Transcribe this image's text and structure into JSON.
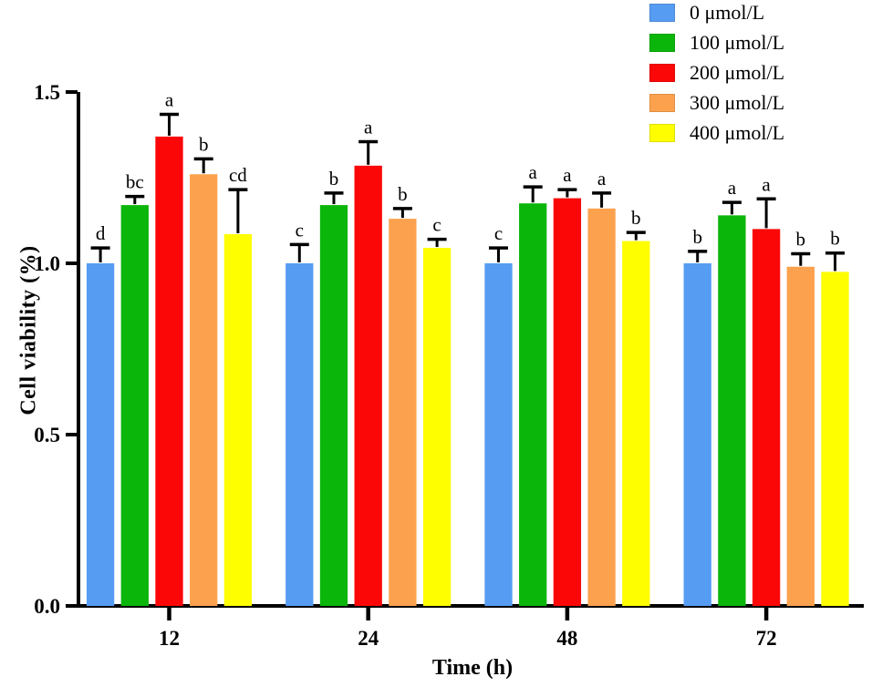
{
  "chart_data": {
    "type": "bar",
    "title": "",
    "xlabel": "Time (h)",
    "ylabel": "Cell viability (%)",
    "ylim": [
      0,
      1.5
    ],
    "yticks": [
      {
        "value": 0.0,
        "label": "0.0"
      },
      {
        "value": 0.5,
        "label": "0.5"
      },
      {
        "value": 1.0,
        "label": "1.0"
      },
      {
        "value": 1.5,
        "label": "1.5"
      }
    ],
    "categories": [
      "12",
      "24",
      "48",
      "72"
    ],
    "grid": false,
    "legend_position": "top-right",
    "error_bars": "upper-only with caps",
    "axis_color": "#000000",
    "series": [
      {
        "name": "0 μmol/L",
        "color": "#569CF2",
        "values": [
          1.0,
          1.0,
          1.0,
          1.0
        ],
        "errors": [
          0.045,
          0.055,
          0.045,
          0.035
        ],
        "letters": [
          "d",
          "c",
          "c",
          "b"
        ]
      },
      {
        "name": "100 μmol/L",
        "color": "#0BB60B",
        "values": [
          1.17,
          1.17,
          1.175,
          1.14
        ],
        "errors": [
          0.025,
          0.035,
          0.048,
          0.038
        ],
        "letters": [
          "bc",
          "b",
          "a",
          "a"
        ]
      },
      {
        "name": "200 μmol/L",
        "color": "#FB0707",
        "values": [
          1.37,
          1.285,
          1.19,
          1.1
        ],
        "errors": [
          0.065,
          0.07,
          0.025,
          0.088
        ],
        "letters": [
          "a",
          "a",
          "a",
          "a"
        ]
      },
      {
        "name": "300 μmol/L",
        "color": "#FCA24E",
        "values": [
          1.26,
          1.13,
          1.16,
          0.99
        ],
        "errors": [
          0.045,
          0.03,
          0.045,
          0.038
        ],
        "letters": [
          "b",
          "b",
          "a",
          "b"
        ]
      },
      {
        "name": "400 μmol/L",
        "color": "#FEFE00",
        "values": [
          1.085,
          1.045,
          1.065,
          0.975
        ],
        "errors": [
          0.13,
          0.025,
          0.025,
          0.055
        ],
        "letters": [
          "cd",
          "c",
          "b",
          "b"
        ]
      }
    ]
  }
}
